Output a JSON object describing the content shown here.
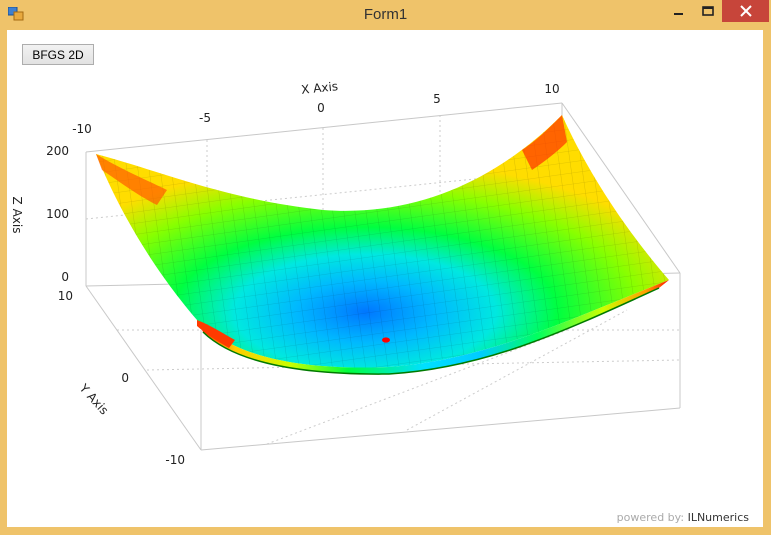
{
  "window": {
    "title": "Form1",
    "border_color": "#efc36a",
    "close_color": "#c7453a"
  },
  "toolbar": {
    "bfgs_label": "BFGS 2D"
  },
  "plot": {
    "x_axis_label": "X Axis",
    "y_axis_label": "Y Axis",
    "z_axis_label": "Z Axis",
    "x_ticks": [
      "-10",
      "-5",
      "0",
      "5",
      "10"
    ],
    "y_ticks": [
      "10",
      "0",
      "-10"
    ],
    "z_ticks": [
      "200",
      "100",
      "0"
    ],
    "colormap": [
      "#0000ff",
      "#00c8ff",
      "#00ff40",
      "#ffff00",
      "#ff0000"
    ]
  },
  "footer": {
    "powered_by": "powered by:",
    "brand": "ILNumerics"
  }
}
